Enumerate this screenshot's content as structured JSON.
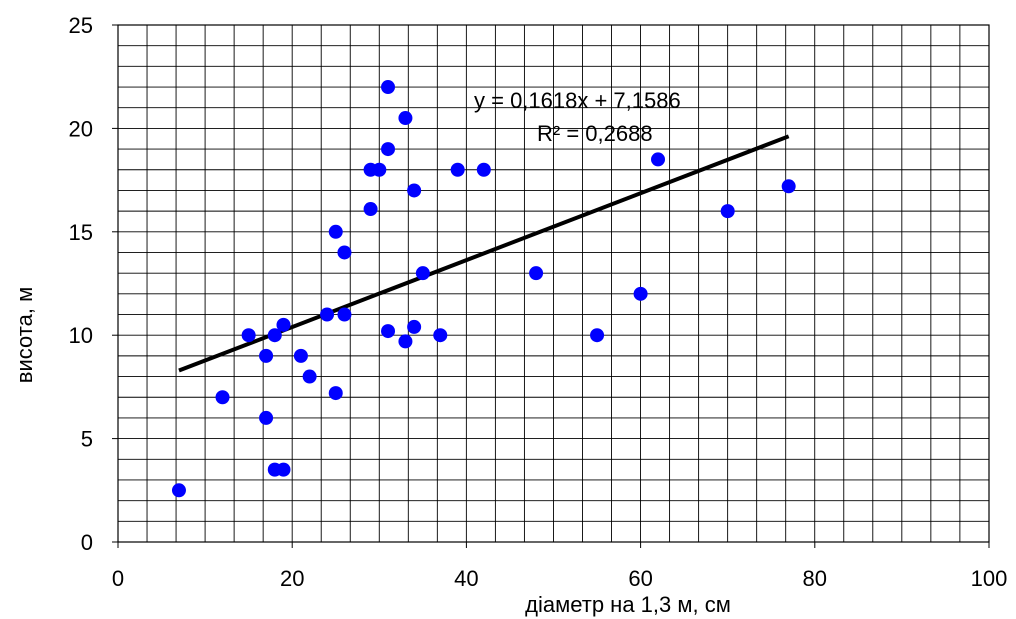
{
  "chart_data": {
    "type": "scatter",
    "title": "",
    "xlabel": "діаметр на 1,3 м, см",
    "ylabel": "висота, м",
    "xlim": [
      0,
      100
    ],
    "ylim": [
      0,
      25
    ],
    "x_ticks": [
      "0",
      "20",
      "40",
      "60",
      "80",
      "100"
    ],
    "y_ticks": [
      "0",
      "5",
      "10",
      "15",
      "20",
      "25"
    ],
    "grid": true,
    "grid_minor": {
      "x_step": 3.333,
      "y_step": 1
    },
    "marker_color": "#0000ff",
    "trendline_color": "#000000",
    "points": [
      {
        "x": 7,
        "y": 2.5
      },
      {
        "x": 12,
        "y": 7
      },
      {
        "x": 15,
        "y": 10
      },
      {
        "x": 17,
        "y": 9
      },
      {
        "x": 17,
        "y": 6
      },
      {
        "x": 18,
        "y": 10
      },
      {
        "x": 18,
        "y": 3.5
      },
      {
        "x": 19,
        "y": 10.5
      },
      {
        "x": 19,
        "y": 3.5
      },
      {
        "x": 21,
        "y": 9
      },
      {
        "x": 22,
        "y": 8
      },
      {
        "x": 24,
        "y": 11
      },
      {
        "x": 25,
        "y": 15
      },
      {
        "x": 25,
        "y": 7.2
      },
      {
        "x": 26,
        "y": 14
      },
      {
        "x": 26,
        "y": 11
      },
      {
        "x": 29,
        "y": 18
      },
      {
        "x": 29,
        "y": 16.1
      },
      {
        "x": 30,
        "y": 18
      },
      {
        "x": 31,
        "y": 22
      },
      {
        "x": 31,
        "y": 19
      },
      {
        "x": 31,
        "y": 10.2
      },
      {
        "x": 33,
        "y": 20.5
      },
      {
        "x": 33,
        "y": 9.7
      },
      {
        "x": 34,
        "y": 17
      },
      {
        "x": 34,
        "y": 10.4
      },
      {
        "x": 35,
        "y": 13
      },
      {
        "x": 37,
        "y": 10
      },
      {
        "x": 39,
        "y": 18
      },
      {
        "x": 42,
        "y": 18
      },
      {
        "x": 48,
        "y": 13
      },
      {
        "x": 55,
        "y": 10
      },
      {
        "x": 60,
        "y": 12
      },
      {
        "x": 62,
        "y": 18.5
      },
      {
        "x": 70,
        "y": 16
      },
      {
        "x": 77,
        "y": 17.2
      }
    ],
    "trendline": {
      "slope": 0.1618,
      "intercept": 7.1586,
      "x_range": [
        7,
        77
      ],
      "equation": "y = 0,1618x + 7,1586",
      "r2": "R² = 0,2688"
    }
  }
}
